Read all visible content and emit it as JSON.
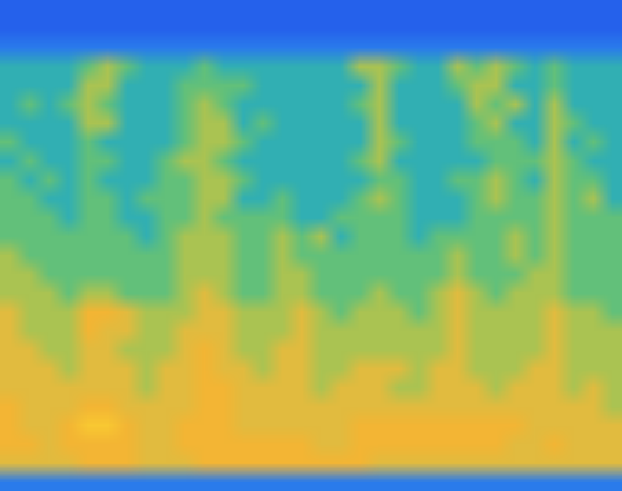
{
  "chart_data": {
    "type": "heatmap",
    "tick_labels": false,
    "grid": false,
    "color_range": [
      0,
      10
    ],
    "cells": [
      [
        1,
        1,
        1,
        1,
        1,
        1,
        1,
        1,
        1,
        1,
        1,
        1,
        1,
        1,
        1,
        1,
        1,
        1,
        1,
        1,
        1,
        1,
        1,
        1,
        1,
        1,
        1,
        1,
        1,
        1,
        1,
        1
      ],
      [
        1,
        1,
        1,
        1,
        1,
        1,
        1,
        1,
        1,
        1,
        1,
        1,
        1,
        1,
        1,
        1,
        1,
        1,
        1,
        1,
        1,
        1,
        1,
        1,
        1,
        1,
        1,
        1,
        1,
        1,
        1,
        1
      ],
      [
        2,
        2,
        2,
        2,
        2,
        2,
        2,
        2,
        2,
        2,
        2,
        2,
        2,
        2,
        2,
        2,
        2,
        2,
        2,
        2,
        2,
        2,
        2,
        2,
        2,
        2,
        2,
        2,
        2,
        2,
        2,
        2
      ],
      [
        4,
        4,
        4,
        4,
        5,
        6,
        5,
        4,
        4,
        4,
        5,
        4,
        4,
        4,
        4,
        4,
        4,
        4,
        6,
        6,
        5,
        4,
        4,
        6,
        5,
        6,
        5,
        4,
        5,
        4,
        4,
        4
      ],
      [
        4,
        4,
        4,
        4,
        6,
        6,
        4,
        4,
        4,
        5,
        5,
        5,
        5,
        4,
        4,
        4,
        4,
        4,
        4,
        6,
        4,
        4,
        4,
        5,
        6,
        6,
        4,
        4,
        5,
        4,
        4,
        4
      ],
      [
        4,
        5,
        4,
        5,
        6,
        5,
        4,
        4,
        4,
        5,
        6,
        5,
        4,
        4,
        4,
        4,
        4,
        4,
        5,
        6,
        4,
        4,
        4,
        4,
        6,
        5,
        6,
        4,
        6,
        4,
        4,
        4
      ],
      [
        4,
        4,
        4,
        4,
        6,
        6,
        4,
        4,
        4,
        5,
        6,
        6,
        4,
        5,
        4,
        4,
        4,
        4,
        4,
        6,
        4,
        4,
        4,
        4,
        5,
        6,
        4,
        4,
        6,
        5,
        4,
        4
      ],
      [
        5,
        4,
        4,
        4,
        5,
        4,
        4,
        4,
        4,
        5,
        6,
        6,
        5,
        4,
        4,
        4,
        4,
        4,
        4,
        6,
        5,
        4,
        4,
        4,
        5,
        5,
        5,
        4,
        6,
        4,
        5,
        4
      ],
      [
        4,
        5,
        4,
        4,
        5,
        5,
        4,
        4,
        5,
        6,
        6,
        5,
        4,
        4,
        4,
        4,
        4,
        4,
        5,
        6,
        4,
        4,
        4,
        4,
        4,
        5,
        5,
        5,
        6,
        5,
        4,
        4
      ],
      [
        5,
        4,
        5,
        4,
        5,
        4,
        4,
        4,
        5,
        5,
        6,
        6,
        5,
        4,
        4,
        4,
        4,
        4,
        4,
        5,
        5,
        4,
        4,
        5,
        5,
        6,
        5,
        4,
        6,
        5,
        5,
        4
      ],
      [
        5,
        5,
        4,
        4,
        5,
        5,
        4,
        5,
        5,
        5,
        6,
        6,
        4,
        4,
        5,
        4,
        4,
        4,
        5,
        6,
        5,
        4,
        4,
        4,
        5,
        6,
        5,
        5,
        6,
        5,
        6,
        4
      ],
      [
        5,
        5,
        5,
        4,
        5,
        5,
        4,
        4,
        5,
        5,
        6,
        5,
        5,
        5,
        5,
        4,
        4,
        5,
        5,
        5,
        5,
        4,
        4,
        4,
        5,
        5,
        5,
        5,
        6,
        5,
        5,
        5
      ],
      [
        5,
        5,
        5,
        5,
        5,
        5,
        5,
        4,
        5,
        6,
        6,
        6,
        5,
        5,
        6,
        5,
        6,
        4,
        5,
        5,
        5,
        4,
        5,
        5,
        5,
        5,
        6,
        5,
        6,
        5,
        5,
        5
      ],
      [
        6,
        5,
        5,
        5,
        5,
        5,
        5,
        5,
        5,
        6,
        6,
        6,
        5,
        5,
        6,
        5,
        5,
        5,
        5,
        5,
        5,
        5,
        5,
        6,
        5,
        5,
        6,
        5,
        6,
        5,
        5,
        5
      ],
      [
        6,
        6,
        5,
        5,
        5,
        5,
        5,
        5,
        5,
        6,
        6,
        6,
        5,
        5,
        6,
        6,
        5,
        5,
        5,
        5,
        5,
        5,
        5,
        6,
        5,
        5,
        5,
        6,
        6,
        5,
        5,
        5
      ],
      [
        6,
        6,
        6,
        5,
        6,
        6,
        5,
        5,
        5,
        6,
        7,
        6,
        5,
        5,
        6,
        6,
        5,
        5,
        5,
        6,
        5,
        5,
        6,
        7,
        6,
        5,
        6,
        6,
        6,
        5,
        5,
        5
      ],
      [
        7,
        6,
        6,
        6,
        8,
        8,
        7,
        6,
        6,
        6,
        7,
        7,
        6,
        6,
        6,
        7,
        6,
        5,
        6,
        6,
        6,
        5,
        6,
        7,
        6,
        6,
        6,
        6,
        7,
        6,
        6,
        5
      ],
      [
        7,
        6,
        6,
        6,
        8,
        7,
        7,
        6,
        6,
        7,
        7,
        7,
        6,
        6,
        6,
        7,
        6,
        6,
        6,
        6,
        6,
        6,
        6,
        7,
        6,
        6,
        6,
        6,
        7,
        6,
        6,
        6
      ],
      [
        7,
        7,
        6,
        6,
        7,
        7,
        6,
        6,
        6,
        7,
        8,
        7,
        6,
        6,
        7,
        7,
        6,
        6,
        6,
        6,
        6,
        6,
        6,
        7,
        6,
        6,
        6,
        6,
        7,
        6,
        6,
        6
      ],
      [
        7,
        7,
        7,
        6,
        7,
        7,
        7,
        6,
        7,
        7,
        8,
        7,
        7,
        6,
        7,
        7,
        6,
        6,
        7,
        7,
        7,
        6,
        7,
        7,
        6,
        6,
        6,
        7,
        7,
        6,
        6,
        6
      ],
      [
        7,
        7,
        7,
        7,
        7,
        7,
        7,
        6,
        7,
        7,
        8,
        8,
        7,
        7,
        7,
        7,
        6,
        7,
        7,
        7,
        6,
        6,
        7,
        7,
        7,
        6,
        7,
        7,
        7,
        6,
        7,
        6
      ],
      [
        8,
        7,
        7,
        7,
        8,
        8,
        7,
        7,
        7,
        7,
        8,
        8,
        7,
        7,
        7,
        7,
        7,
        7,
        7,
        7,
        7,
        7,
        7,
        7,
        7,
        7,
        7,
        7,
        7,
        7,
        7,
        6
      ],
      [
        8,
        7,
        7,
        8,
        9,
        9,
        8,
        7,
        7,
        8,
        8,
        8,
        7,
        7,
        7,
        7,
        7,
        7,
        8,
        8,
        8,
        8,
        8,
        8,
        8,
        8,
        8,
        7,
        7,
        7,
        7,
        7
      ],
      [
        8,
        8,
        7,
        8,
        8,
        8,
        8,
        7,
        7,
        8,
        8,
        8,
        8,
        8,
        8,
        8,
        7,
        7,
        8,
        8,
        8,
        8,
        8,
        8,
        8,
        8,
        7,
        7,
        8,
        7,
        7,
        7
      ],
      [
        7,
        7,
        7,
        7,
        8,
        8,
        8,
        7,
        7,
        7,
        8,
        8,
        8,
        8,
        8,
        8,
        8,
        8,
        8,
        7,
        7,
        7,
        7,
        7,
        7,
        7,
        7,
        7,
        7,
        7,
        7,
        7
      ],
      [
        2,
        2,
        2,
        2,
        2,
        2,
        2,
        2,
        2,
        2,
        2,
        2,
        2,
        2,
        2,
        2,
        2,
        2,
        2,
        2,
        2,
        2,
        2,
        2,
        2,
        2,
        2,
        2,
        2,
        2,
        2,
        2
      ]
    ]
  }
}
